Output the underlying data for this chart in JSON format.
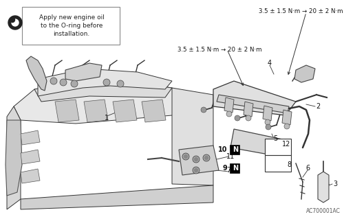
{
  "bg_color": "#f5f5f0",
  "figsize": [
    5.0,
    3.19
  ],
  "dpi": 100,
  "torque_top": "3.5 ± 1.5 N·m → 20 ± 2 N·m",
  "torque_mid": "3.5 ± 1.5 N·m → 20 ± 2 N·m",
  "callout_line1": "Apply new engine oil",
  "callout_line2": "to the O-ring before",
  "callout_line3": "installation.",
  "code_text": "AC700001AC",
  "lc": "#333333",
  "lw": 0.7
}
